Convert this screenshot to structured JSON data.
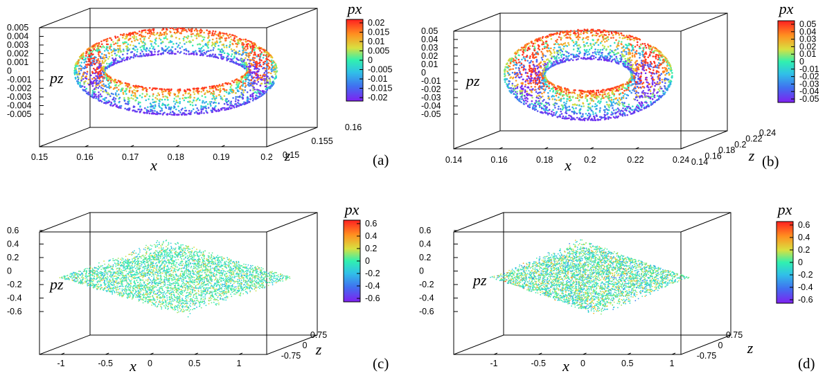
{
  "chart_data": [
    {
      "type": "scatter",
      "panel_label": "(a)",
      "xlabel": "x",
      "ylabel": "pz",
      "zlabel": "z",
      "colorbar_label": "px",
      "shape": "torus",
      "xlim": [
        0.15,
        0.2
      ],
      "ylim": [
        0.15,
        0.16
      ],
      "zlim": [
        -0.005,
        0.005
      ],
      "x_ticks": [
        "0.15",
        "0.16",
        "0.17",
        "0.18",
        "0.19",
        "0.2"
      ],
      "z_ticks": [
        "0.15",
        "0.155",
        "0.16"
      ],
      "pz_ticks": [
        "0.005",
        "0.004",
        "0.003",
        "0.002",
        "0.001",
        "0",
        "-0.001",
        "-0.002",
        "-0.003",
        "-0.004",
        "-0.005"
      ],
      "colorbar_range": [
        -0.02,
        0.02
      ],
      "colorbar_ticks": [
        "0.02",
        "0.015",
        "0.01",
        "0.005",
        "0",
        "-0.005",
        "-0.01",
        "-0.015",
        "-0.02"
      ],
      "center": {
        "x": 0.175,
        "z": 0.155
      },
      "radius_major_x": 0.019,
      "radius_major_z": 0.0042,
      "radius_minor_x": 0.0033,
      "radius_minor_pz": 0.0019
    },
    {
      "type": "scatter",
      "panel_label": "(b)",
      "xlabel": "x",
      "ylabel": "pz",
      "zlabel": "z",
      "colorbar_label": "px",
      "shape": "torus",
      "xlim": [
        0.14,
        0.24
      ],
      "ylim": [
        0.14,
        0.24
      ],
      "zlim": [
        -0.05,
        0.05
      ],
      "x_ticks": [
        "0.14",
        "0.16",
        "0.18",
        "0.2",
        "0.22",
        "0.24"
      ],
      "z_ticks": [
        "0.14",
        "0.16",
        "0.18",
        "0.2",
        "0.22",
        "0.24"
      ],
      "pz_ticks": [
        "0.05",
        "0.04",
        "0.03",
        "0.02",
        "0.01",
        "0",
        "-0.01",
        "-0.02",
        "-0.03",
        "-0.04",
        "-0.05"
      ],
      "colorbar_range": [
        -0.05,
        0.05
      ],
      "colorbar_ticks": [
        "0.05",
        "0.04",
        "0.03",
        "0.02",
        "0.01",
        "0",
        "-0.01",
        "-0.02",
        "-0.03",
        "-0.04",
        "-0.05"
      ],
      "center": {
        "x": 0.19,
        "z": 0.195
      },
      "radius_major_x": 0.028,
      "radius_major_z": 0.03,
      "radius_minor_x": 0.009,
      "radius_minor_pz": 0.022
    },
    {
      "type": "scatter",
      "panel_label": "(c)",
      "xlabel": "x",
      "ylabel": "pz",
      "zlabel": "z",
      "colorbar_label": "px",
      "shape": "diamond-cloud",
      "xlim": [
        -1.25,
        1.25
      ],
      "ylim": [
        -0.75,
        0.75
      ],
      "zlim": [
        -0.6,
        0.6
      ],
      "x_ticks": [
        "-1",
        "-0.5",
        "0",
        "0.5",
        "1"
      ],
      "z_ticks": [
        "-0.75",
        "0",
        "0.75"
      ],
      "pz_ticks": [
        "0.6",
        "0.4",
        "0.2",
        "0",
        "-0.2",
        "-0.4",
        "-0.6"
      ],
      "colorbar_range": [
        -0.6,
        0.6
      ],
      "colorbar_ticks": [
        "0.6",
        "0.4",
        "0.2",
        "0",
        "-0.2",
        "-0.4",
        "-0.6"
      ],
      "extent_x": 1.3,
      "extent_z": 0.75,
      "extent_pz": 0.33,
      "color_spread": 0.12
    },
    {
      "type": "scatter",
      "panel_label": "(d)",
      "xlabel": "x",
      "ylabel": "pz",
      "zlabel": "z",
      "colorbar_label": "px",
      "shape": "diamond-cloud",
      "xlim": [
        -1.25,
        1.25
      ],
      "ylim": [
        -0.75,
        0.75
      ],
      "zlim": [
        -0.6,
        0.6
      ],
      "x_ticks": [
        "-1",
        "-0.5",
        "0",
        "0.5",
        "1"
      ],
      "z_ticks": [
        "-0.75",
        "0",
        "0.75"
      ],
      "pz_ticks": [
        "0.6",
        "0.4",
        "0.2",
        "0",
        "-0.2",
        "-0.4",
        "-0.6"
      ],
      "colorbar_range": [
        -0.6,
        0.6
      ],
      "colorbar_ticks": [
        "0.6",
        "0.4",
        "0.2",
        "0",
        "-0.2",
        "-0.4",
        "-0.6"
      ],
      "extent_x": 1.1,
      "extent_z": 0.7,
      "extent_pz": 0.33,
      "color_spread": 0.15
    }
  ]
}
